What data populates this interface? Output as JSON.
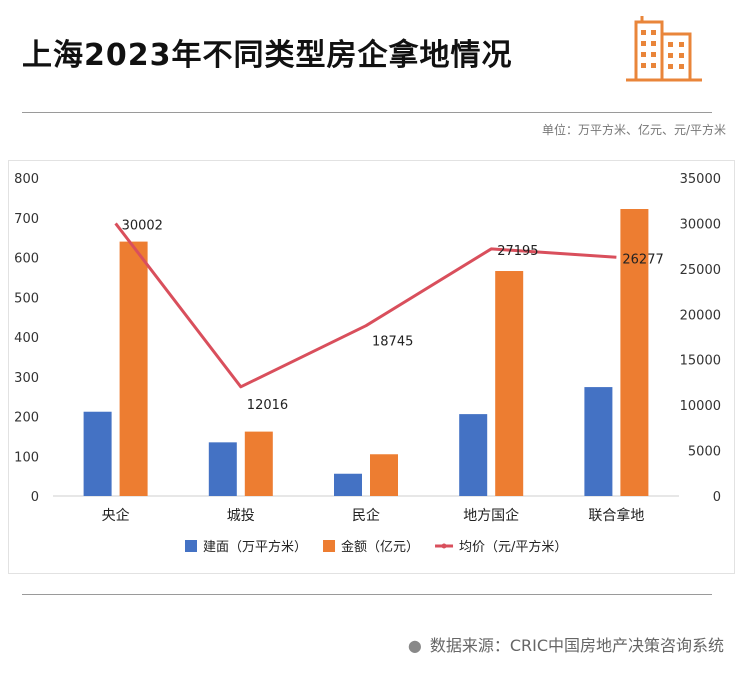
{
  "title": "上海2023年不同类型房企拿地情况",
  "unit_note": "单位：万平方米、亿元、元/平方米",
  "source": "数据来源：CRIC中国房地产决策咨询系统",
  "colors": {
    "blue": "#4472C4",
    "orange": "#ED7D31",
    "line": "#D94F5C",
    "logo": "#E9853A"
  },
  "chart_data": {
    "type": "bar",
    "categories": [
      "央企",
      "城投",
      "民企",
      "地方国企",
      "联合拿地"
    ],
    "series": [
      {
        "name": "建面（万平方米）",
        "type": "bar",
        "axis": "left",
        "values": [
          212,
          135,
          56,
          206,
          274
        ]
      },
      {
        "name": "金额（亿元）",
        "type": "bar",
        "axis": "left",
        "values": [
          640,
          162,
          105,
          566,
          722
        ]
      },
      {
        "name": "均价（元/平方米）",
        "type": "line",
        "axis": "right",
        "values": [
          30002,
          12016,
          18745,
          27195,
          26277
        ]
      }
    ],
    "left_axis": {
      "min": 0,
      "max": 800,
      "ticks": [
        0,
        100,
        200,
        300,
        400,
        500,
        600,
        700,
        800
      ]
    },
    "right_axis": {
      "min": 0,
      "max": 35000,
      "ticks": [
        0,
        5000,
        10000,
        15000,
        20000,
        25000,
        30000,
        35000
      ]
    },
    "line_labels": [
      "30002",
      "12016",
      "18745",
      "27195",
      "26277"
    ],
    "legend_position": "bottom"
  }
}
